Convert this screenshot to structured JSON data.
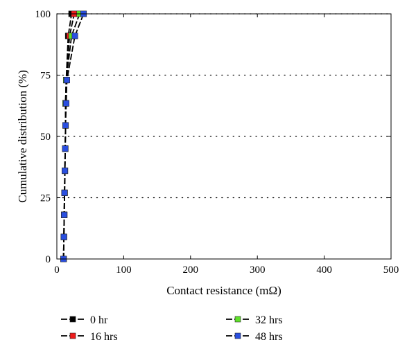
{
  "chart_data": {
    "type": "line",
    "title": "",
    "xlabel": "Contact resistance (mΩ)",
    "ylabel": "Cumulative distribution (%)",
    "xlim": [
      0,
      500
    ],
    "ylim": [
      0,
      100
    ],
    "xticks": [
      0,
      100,
      200,
      300,
      400,
      500
    ],
    "yticks": [
      0,
      25,
      50,
      75,
      100
    ],
    "grid": "horizontal dotted at y ticks",
    "legend_position": "below",
    "series": [
      {
        "name": "0 hr",
        "color": "#000000",
        "x": [
          10,
          10.5,
          11,
          11.5,
          12,
          12.5,
          13,
          13,
          14,
          17,
          22
        ],
        "y": [
          0,
          9,
          18,
          27,
          36,
          45,
          54.5,
          63.5,
          73,
          91,
          100
        ]
      },
      {
        "name": "16 hrs",
        "color": "#ee1c1c",
        "x": [
          10,
          10.5,
          11,
          11.5,
          12,
          12.5,
          13,
          13,
          14,
          19,
          26
        ],
        "y": [
          0,
          9,
          18,
          27,
          36,
          45,
          54.5,
          63.5,
          73,
          91,
          100
        ]
      },
      {
        "name": "32 hrs",
        "color": "#5fe02a",
        "x": [
          10,
          10.5,
          11,
          11.5,
          12,
          12.5,
          13,
          13,
          14,
          22,
          34
        ],
        "y": [
          0,
          9,
          18,
          27,
          36,
          45,
          54.5,
          63.5,
          73,
          91,
          100
        ]
      },
      {
        "name": "48 hrs",
        "color": "#2a4fe0",
        "x": [
          10,
          10.5,
          11,
          11.5,
          12,
          12.5,
          13,
          14,
          15,
          27,
          40
        ],
        "y": [
          0,
          9,
          18,
          27,
          36,
          45,
          54.5,
          63.5,
          73,
          91,
          100
        ]
      }
    ]
  }
}
